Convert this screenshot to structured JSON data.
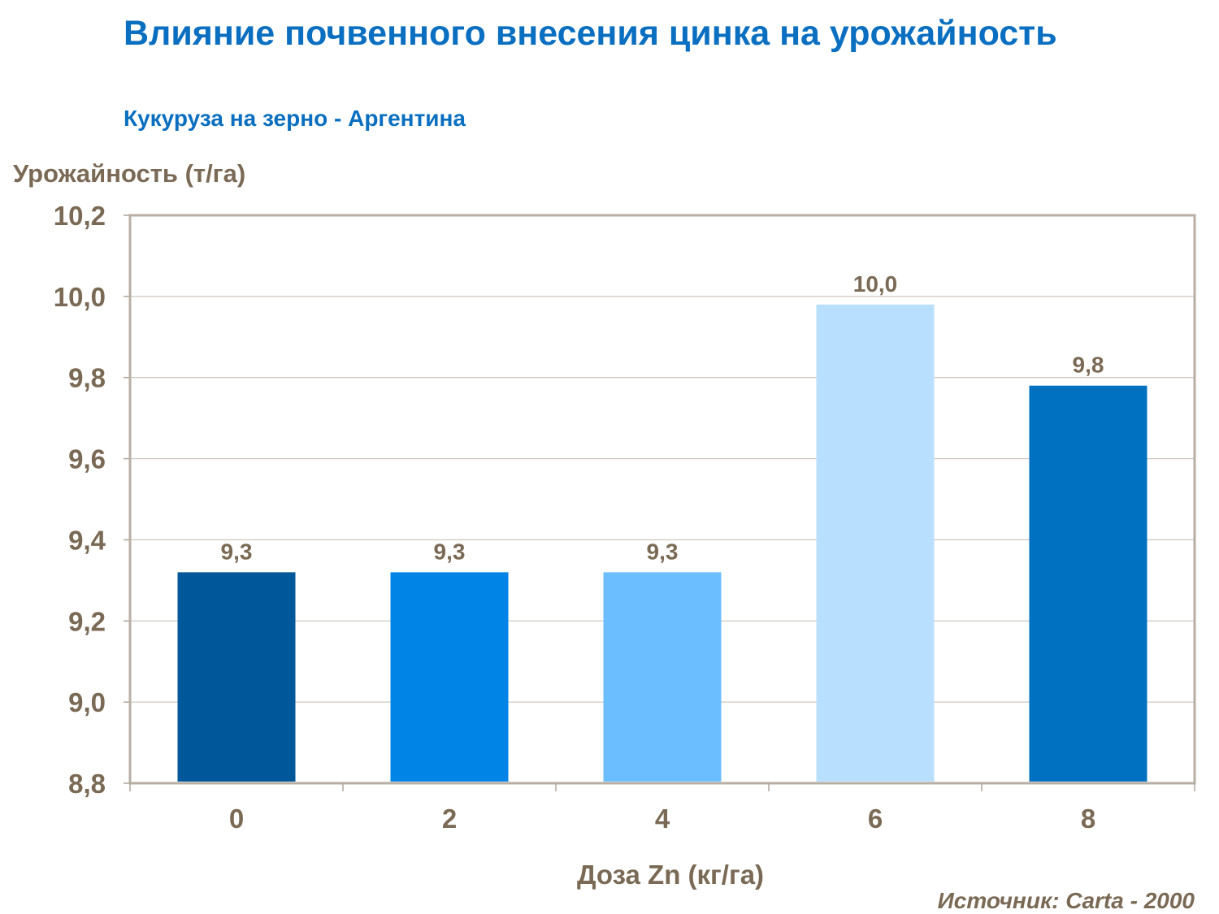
{
  "chart_data": {
    "type": "bar",
    "title": "Влияние почвенного внесения цинка на урожайность",
    "subtitle": "Кукуруза на зерно - Аргентина",
    "ylabel": "Урожайность (т/га)",
    "xlabel": "Доза Zn (кг/га)",
    "source": "Источник: Carta - 2000",
    "categories": [
      "0",
      "2",
      "4",
      "6",
      "8"
    ],
    "values": [
      9.32,
      9.32,
      9.32,
      9.98,
      9.78
    ],
    "data_labels": [
      "9,3",
      "9,3",
      "9,3",
      "10,0",
      "9,8"
    ],
    "bar_colors": [
      "#00589a",
      "#0084e6",
      "#6bbeff",
      "#b9dfff",
      "#0070c0"
    ],
    "ylim": [
      8.8,
      10.2
    ],
    "yticks": [
      "8,8",
      "9,0",
      "9,2",
      "9,4",
      "9,6",
      "9,8",
      "10,0",
      "10,2"
    ],
    "grid": true,
    "legend": "none"
  }
}
